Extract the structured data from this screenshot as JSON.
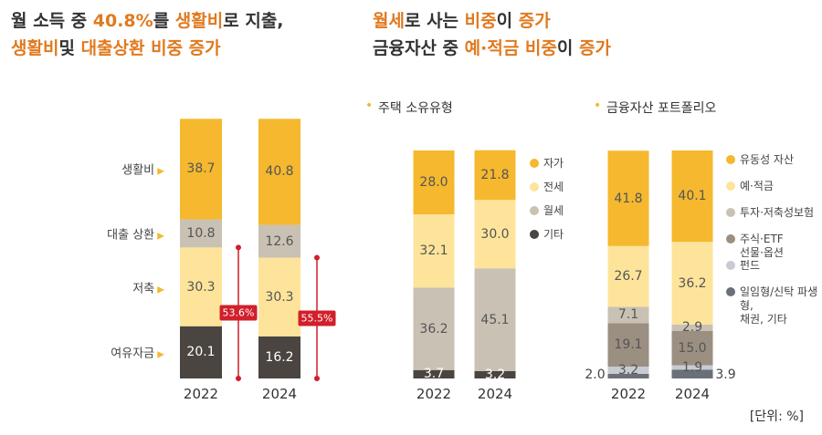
{
  "headlines": {
    "left": [
      [
        {
          "text": "월 소득 중 ",
          "color": "#333333"
        },
        {
          "text": "40.8%",
          "color": "#e07a1f"
        },
        {
          "text": "를 ",
          "color": "#333333"
        },
        {
          "text": "생활비",
          "color": "#e07a1f"
        },
        {
          "text": "로 지출,",
          "color": "#333333"
        }
      ],
      [
        {
          "text": "생활비",
          "color": "#e07a1f"
        },
        {
          "text": "및 ",
          "color": "#333333"
        },
        {
          "text": "대출상환 비중 증가",
          "color": "#e07a1f"
        }
      ]
    ],
    "right": [
      [
        {
          "text": "월세",
          "color": "#e07a1f"
        },
        {
          "text": "로 사는 ",
          "color": "#333333"
        },
        {
          "text": "비중",
          "color": "#e07a1f"
        },
        {
          "text": "이 ",
          "color": "#333333"
        },
        {
          "text": "증가",
          "color": "#e07a1f"
        }
      ],
      [
        {
          "text": "금융자산 중 ",
          "color": "#333333"
        },
        {
          "text": "예·적금 비중",
          "color": "#e07a1f"
        },
        {
          "text": "이 ",
          "color": "#333333"
        },
        {
          "text": "증가",
          "color": "#e07a1f"
        }
      ]
    ]
  },
  "unit_note": "[단위: %]",
  "chart_data": [
    {
      "type": "stacked_bar",
      "legend": "left",
      "categories": [
        "2022",
        "2024"
      ],
      "ylim": [
        0,
        100
      ],
      "series": [
        {
          "name": "생활비",
          "color": "#f5b82e",
          "values": [
            38.7,
            40.8
          ]
        },
        {
          "name": "대출 상환",
          "color": "#c9c1b4",
          "values": [
            10.8,
            12.6
          ]
        },
        {
          "name": "저축",
          "color": "#fde49a",
          "values": [
            30.3,
            30.3
          ]
        },
        {
          "name": "여유자금",
          "color": "#4a4540",
          "values": [
            20.1,
            16.2
          ]
        }
      ],
      "annotations": [
        "53.6%",
        "55.5%"
      ]
    },
    {
      "type": "stacked_bar",
      "legend": "right",
      "subtitle": "주택 소유유형",
      "categories": [
        "2022",
        "2024"
      ],
      "ylim": [
        0,
        100
      ],
      "series": [
        {
          "name": "자가",
          "color": "#f5b82e",
          "values": [
            28,
            21.8
          ],
          "value_labels": [
            "28.0",
            "21.8"
          ]
        },
        {
          "name": "전세",
          "color": "#fde49a",
          "values": [
            32.1,
            30
          ],
          "value_labels": [
            "32.1",
            "30.0"
          ]
        },
        {
          "name": "월세",
          "color": "#c9c1b4",
          "values": [
            36.2,
            45.1
          ]
        },
        {
          "name": "기타",
          "color": "#4a4540",
          "values": [
            3.7,
            3.2
          ]
        }
      ]
    },
    {
      "type": "stacked_bar",
      "legend": "right",
      "subtitle": "금융자산 포트폴리오",
      "categories": [
        "2022",
        "2024"
      ],
      "ylim": [
        0,
        100
      ],
      "series": [
        {
          "name": "유동성 자산",
          "color": "#f5b82e",
          "values": [
            41.8,
            40.1
          ]
        },
        {
          "name": "예·적금",
          "color": "#fde49a",
          "values": [
            26.7,
            36.2
          ]
        },
        {
          "name": "투자·저축성보험",
          "color": "#c9c1b4",
          "values": [
            7.1,
            2.9
          ]
        },
        {
          "name": "주식·ETF\n선물·옵션",
          "color": "#9b8f82",
          "values": [
            19.1,
            15
          ],
          "value_labels": [
            "19.1",
            "15.0"
          ]
        },
        {
          "name": "펀드",
          "color": "#c8cbd2",
          "values": [
            3.2,
            1.9
          ]
        },
        {
          "name": "일임형/신탁 파생형,\n채권, 기타",
          "color": "#6b6f78",
          "values": [
            2,
            3.9
          ],
          "value_labels": [
            "2.0",
            "3.9"
          ]
        }
      ]
    }
  ]
}
